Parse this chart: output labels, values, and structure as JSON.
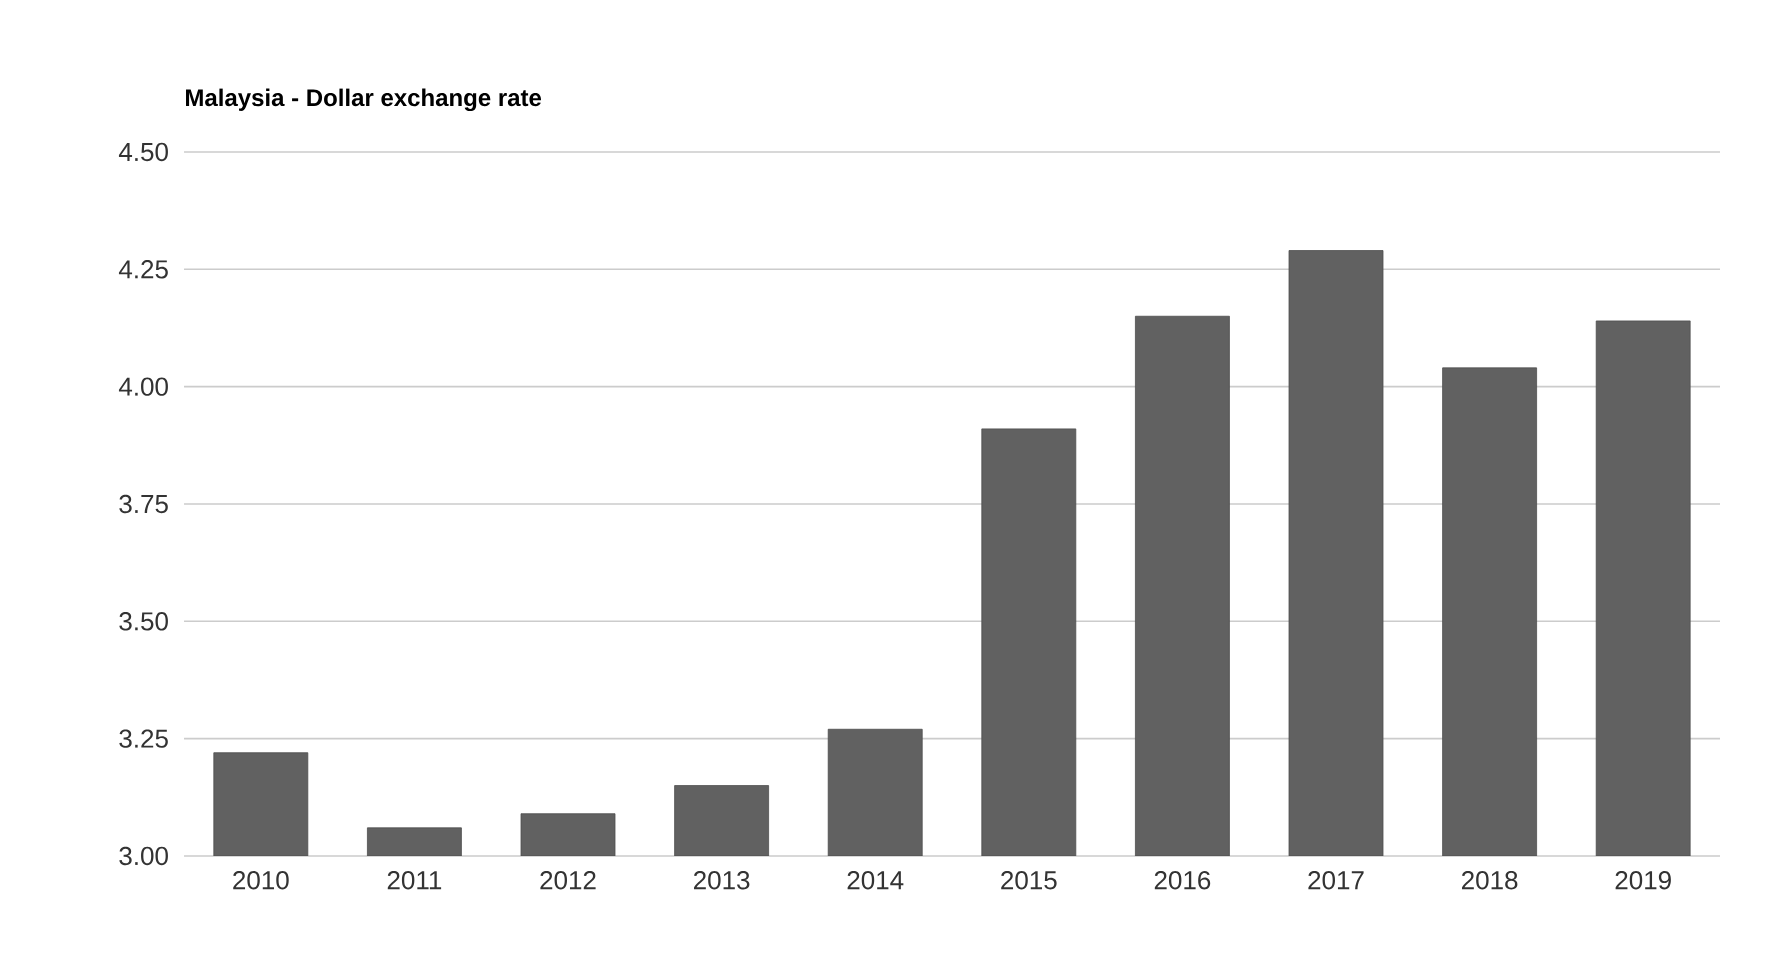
{
  "chart_data": {
    "type": "bar",
    "title": "Malaysia - Dollar exchange rate",
    "categories": [
      "2010",
      "2011",
      "2012",
      "2013",
      "2014",
      "2015",
      "2016",
      "2017",
      "2018",
      "2019"
    ],
    "values": [
      3.22,
      3.06,
      3.09,
      3.15,
      3.27,
      3.91,
      4.15,
      4.29,
      4.04,
      4.14
    ],
    "color": "#616161",
    "ylim": [
      3.0,
      4.5
    ],
    "yticks": [
      {
        "value": 3.0,
        "label": "3.00"
      },
      {
        "value": 3.25,
        "label": "3.25"
      },
      {
        "value": 3.5,
        "label": "3.50"
      },
      {
        "value": 3.75,
        "label": "3.75"
      },
      {
        "value": 4.0,
        "label": "4.00"
      },
      {
        "value": 4.25,
        "label": "4.25"
      },
      {
        "value": 4.5,
        "label": "4.50"
      }
    ],
    "grid": "y"
  }
}
